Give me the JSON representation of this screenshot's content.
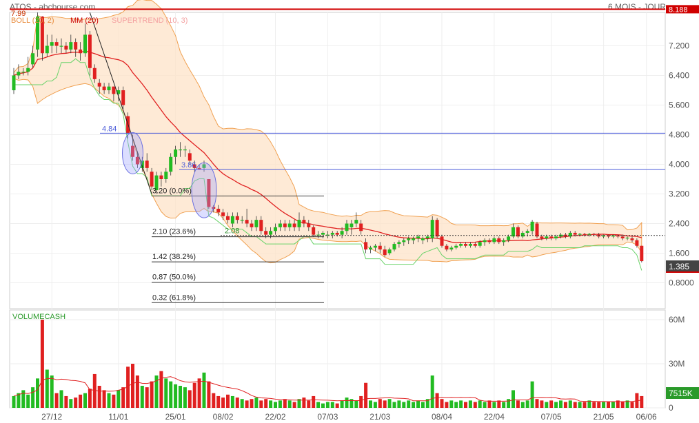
{
  "header": {
    "title": "ATOS - abcbourse.com",
    "period": "6 MOIS - JOUR"
  },
  "chart_data": {
    "type": "candlestick",
    "indicators": {
      "boll": "BOLL (20, 2)",
      "mm": "MM (20)",
      "supertrend": "SUPERTREND (10, 3)"
    },
    "price_labels": {
      "high": "7.99",
      "current": "1.385",
      "top_level": "8.188"
    },
    "y_ticks": [
      "7.200",
      "6.400",
      "5.600",
      "4.800",
      "4.000",
      "3.200",
      "2.400",
      "1.600",
      "0.8000"
    ],
    "x_ticks": [
      "27/12",
      "11/01",
      "25/01",
      "08/02",
      "22/02",
      "07/03",
      "21/03",
      "08/04",
      "22/04",
      "07/05",
      "21/05",
      "06/06"
    ],
    "levels": [
      {
        "value": 8.188
      },
      {
        "value": 4.84,
        "label": "4.84"
      },
      {
        "value": 3.86,
        "label": "3.86"
      },
      {
        "value": 2.08,
        "label": "2.08"
      }
    ],
    "fibonacci": [
      {
        "value": 3.2,
        "label": "3.20  (0.0%)"
      },
      {
        "value": 2.1,
        "label": "2.10  (23.6%)"
      },
      {
        "value": 1.42,
        "label": "1.42  (38.2%)"
      },
      {
        "value": 0.87,
        "label": "0.87  (50.0%)"
      },
      {
        "value": 0.32,
        "label": "0.32  (61.8%)"
      }
    ],
    "candles": [
      [
        6.0,
        6.6,
        5.9,
        6.4
      ],
      [
        6.4,
        6.7,
        6.3,
        6.5
      ],
      [
        6.5,
        6.6,
        6.4,
        6.5
      ],
      [
        6.5,
        6.9,
        6.4,
        6.6
      ],
      [
        6.7,
        7.2,
        6.6,
        7.0
      ],
      [
        7.1,
        8.1,
        6.9,
        7.99
      ],
      [
        7.99,
        8.0,
        6.8,
        7.0
      ],
      [
        7.0,
        7.5,
        6.9,
        7.2
      ],
      [
        7.2,
        7.5,
        7.0,
        7.3
      ],
      [
        7.3,
        7.4,
        7.0,
        7.2
      ],
      [
        7.2,
        7.4,
        7.0,
        7.2
      ],
      [
        7.2,
        7.3,
        7.0,
        7.1
      ],
      [
        7.1,
        7.5,
        7.0,
        7.3
      ],
      [
        7.3,
        7.4,
        6.9,
        7.1
      ],
      [
        7.1,
        7.3,
        6.8,
        7.0
      ],
      [
        7.0,
        7.8,
        6.9,
        7.5
      ],
      [
        7.5,
        7.6,
        6.4,
        6.6
      ],
      [
        6.6,
        6.7,
        6.2,
        6.3
      ],
      [
        6.2,
        6.3,
        5.9,
        6.1
      ],
      [
        6.1,
        6.2,
        5.9,
        6.0
      ],
      [
        6.0,
        6.2,
        5.9,
        6.1
      ],
      [
        6.1,
        6.1,
        5.7,
        5.9
      ],
      [
        5.9,
        6.1,
        5.7,
        6.0
      ],
      [
        6.0,
        6.1,
        5.5,
        5.6
      ],
      [
        5.3,
        5.4,
        4.7,
        4.84
      ],
      [
        4.5,
        4.8,
        4.1,
        4.2
      ],
      [
        4.2,
        4.3,
        3.9,
        4.0
      ],
      [
        3.9,
        4.2,
        3.8,
        4.1
      ],
      [
        4.1,
        4.3,
        3.8,
        3.9
      ],
      [
        3.8,
        3.9,
        3.3,
        3.4
      ],
      [
        3.3,
        3.8,
        3.2,
        3.7
      ],
      [
        3.7,
        3.8,
        3.4,
        3.6
      ],
      [
        3.6,
        3.9,
        3.5,
        3.8
      ],
      [
        3.8,
        4.3,
        3.7,
        4.2
      ],
      [
        4.2,
        4.5,
        4.0,
        4.4
      ],
      [
        4.4,
        4.6,
        4.2,
        4.4
      ],
      [
        4.4,
        4.5,
        4.2,
        4.4
      ],
      [
        4.3,
        4.4,
        4.0,
        4.1
      ],
      [
        4.0,
        4.1,
        3.8,
        3.9
      ],
      [
        3.9,
        4.0,
        3.85,
        3.86
      ],
      [
        3.9,
        4.1,
        3.8,
        4.0
      ],
      [
        3.6,
        3.6,
        2.8,
        2.85
      ],
      [
        2.85,
        2.9,
        2.7,
        2.8
      ],
      [
        2.8,
        2.9,
        2.6,
        2.7
      ],
      [
        2.7,
        2.8,
        2.5,
        2.6
      ],
      [
        2.6,
        2.7,
        2.4,
        2.5
      ],
      [
        2.4,
        2.7,
        2.3,
        2.6
      ],
      [
        2.6,
        2.7,
        2.4,
        2.5
      ],
      [
        2.5,
        2.6,
        2.4,
        2.5
      ],
      [
        2.5,
        2.8,
        2.3,
        2.4
      ],
      [
        2.4,
        2.5,
        2.2,
        2.3
      ],
      [
        2.3,
        2.6,
        2.2,
        2.5
      ],
      [
        2.5,
        2.6,
        2.1,
        2.2
      ],
      [
        2.2,
        2.3,
        2.0,
        2.1
      ],
      [
        2.1,
        2.3,
        2.0,
        2.2
      ],
      [
        2.2,
        2.4,
        2.1,
        2.3
      ],
      [
        2.3,
        2.5,
        2.2,
        2.4
      ],
      [
        2.4,
        2.5,
        2.2,
        2.3
      ],
      [
        2.3,
        2.5,
        2.2,
        2.4
      ],
      [
        2.4,
        2.5,
        2.2,
        2.3
      ],
      [
        2.3,
        2.7,
        2.2,
        2.5
      ],
      [
        2.5,
        2.6,
        2.3,
        2.4
      ],
      [
        2.4,
        2.5,
        2.2,
        2.3
      ],
      [
        2.3,
        2.35,
        2.05,
        2.1
      ],
      [
        2.1,
        2.2,
        2.0,
        2.1
      ],
      [
        2.1,
        2.2,
        2.0,
        2.15
      ],
      [
        2.1,
        2.2,
        2.0,
        2.1
      ],
      [
        2.1,
        2.2,
        2.0,
        2.15
      ],
      [
        2.15,
        2.2,
        2.05,
        2.1
      ],
      [
        2.1,
        2.3,
        2.0,
        2.2
      ],
      [
        2.2,
        2.5,
        2.1,
        2.4
      ],
      [
        2.3,
        2.5,
        2.1,
        2.4
      ],
      [
        2.4,
        2.7,
        2.3,
        2.5
      ],
      [
        2.4,
        2.5,
        2.1,
        2.2
      ],
      [
        1.9,
        2.0,
        1.6,
        1.7
      ],
      [
        1.7,
        1.8,
        1.6,
        1.75
      ],
      [
        1.75,
        1.85,
        1.65,
        1.8
      ],
      [
        1.8,
        1.9,
        1.6,
        1.7
      ],
      [
        1.7,
        1.8,
        1.5,
        1.55
      ],
      [
        1.6,
        1.75,
        1.55,
        1.7
      ],
      [
        1.7,
        1.9,
        1.65,
        1.85
      ],
      [
        1.85,
        1.95,
        1.75,
        1.9
      ],
      [
        1.9,
        2.0,
        1.8,
        1.95
      ],
      [
        1.95,
        2.05,
        1.85,
        2.0
      ],
      [
        1.95,
        2.05,
        1.85,
        2.0
      ],
      [
        2.0,
        2.1,
        1.9,
        2.05
      ],
      [
        1.95,
        2.05,
        1.85,
        2.0
      ],
      [
        2.0,
        2.1,
        1.9,
        2.05
      ],
      [
        2.0,
        2.6,
        1.9,
        2.5
      ],
      [
        2.5,
        2.55,
        2.0,
        2.05
      ],
      [
        2.05,
        2.1,
        1.75,
        1.8
      ],
      [
        1.8,
        1.85,
        1.65,
        1.7
      ],
      [
        1.7,
        1.8,
        1.65,
        1.75
      ],
      [
        1.75,
        1.85,
        1.7,
        1.8
      ],
      [
        1.8,
        1.9,
        1.75,
        1.85
      ],
      [
        1.85,
        1.9,
        1.75,
        1.8
      ],
      [
        1.8,
        1.9,
        1.75,
        1.85
      ],
      [
        1.85,
        1.9,
        1.75,
        1.8
      ],
      [
        1.8,
        1.95,
        1.75,
        1.9
      ],
      [
        1.9,
        2.0,
        1.8,
        1.95
      ],
      [
        1.95,
        2.0,
        1.85,
        1.9
      ],
      [
        1.9,
        2.05,
        1.85,
        2.0
      ],
      [
        2.0,
        2.05,
        1.85,
        1.9
      ],
      [
        1.9,
        2.0,
        1.8,
        1.95
      ],
      [
        1.95,
        2.1,
        1.9,
        2.05
      ],
      [
        2.05,
        2.4,
        2.0,
        2.3
      ],
      [
        2.3,
        2.35,
        2.0,
        2.05
      ],
      [
        2.05,
        2.2,
        2.0,
        2.15
      ],
      [
        2.15,
        2.25,
        2.05,
        2.2
      ],
      [
        2.2,
        2.5,
        2.1,
        2.45
      ],
      [
        2.4,
        2.45,
        2.0,
        2.05
      ],
      [
        2.05,
        2.1,
        1.95,
        2.0
      ],
      [
        2.0,
        2.1,
        1.95,
        2.05
      ],
      [
        2.05,
        2.1,
        1.95,
        2.0
      ],
      [
        2.0,
        2.1,
        1.95,
        2.05
      ],
      [
        2.05,
        2.15,
        2.0,
        2.1
      ],
      [
        2.1,
        2.15,
        2.0,
        2.05
      ],
      [
        2.05,
        2.2,
        2.0,
        2.15
      ],
      [
        2.15,
        2.2,
        2.05,
        2.1
      ],
      [
        2.1,
        2.15,
        2.05,
        2.12
      ],
      [
        2.12,
        2.15,
        2.05,
        2.1
      ],
      [
        2.1,
        2.15,
        2.05,
        2.12
      ],
      [
        2.12,
        2.15,
        2.05,
        2.1
      ],
      [
        2.1,
        2.15,
        2.0,
        2.05
      ],
      [
        2.05,
        2.1,
        2.0,
        2.08
      ],
      [
        2.08,
        2.1,
        2.0,
        2.05
      ],
      [
        2.05,
        2.1,
        2.0,
        2.08
      ],
      [
        2.08,
        2.1,
        2.0,
        2.05
      ],
      [
        2.05,
        2.1,
        1.95,
        2.0
      ],
      [
        2.0,
        2.05,
        1.95,
        2.02
      ],
      [
        2.0,
        2.05,
        1.9,
        1.95
      ],
      [
        1.95,
        2.0,
        1.75,
        1.8
      ],
      [
        1.8,
        1.8,
        1.35,
        1.385
      ]
    ],
    "volume": {
      "label": "VOLUMECASH",
      "y_ticks": [
        "60M",
        "30M",
        "0"
      ],
      "current_label": "7515K",
      "values": [
        8,
        10,
        12,
        9,
        14,
        20,
        60,
        26,
        22,
        10,
        12,
        8,
        6,
        7,
        9,
        10,
        13,
        23,
        15,
        12,
        10,
        9,
        12,
        14,
        28,
        30,
        22,
        15,
        14,
        18,
        22,
        25,
        20,
        18,
        16,
        15,
        14,
        12,
        17,
        20,
        24,
        18,
        10,
        8,
        7,
        9,
        8,
        7,
        6,
        5,
        6,
        7,
        5,
        6,
        5,
        4,
        5,
        6,
        5,
        4,
        6,
        7,
        5,
        8,
        4,
        3,
        4,
        4,
        3,
        5,
        7,
        6,
        5,
        8,
        17,
        5,
        4,
        6,
        5,
        6,
        4,
        5,
        4,
        5,
        4,
        5,
        4,
        6,
        22,
        10,
        6,
        4,
        5,
        4,
        5,
        4,
        5,
        4,
        5,
        4,
        5,
        4,
        5,
        4,
        6,
        12,
        5,
        4,
        5,
        18,
        6,
        5,
        4,
        5,
        4,
        5,
        4,
        5,
        4,
        4,
        4,
        5,
        4,
        4,
        4,
        4,
        4,
        5,
        4,
        5,
        4,
        10,
        8
      ]
    }
  },
  "colors": {
    "up": "#22bb22",
    "down": "#e02020",
    "band_fill": "#fde3c8",
    "band_stroke": "#f0a050",
    "mm": "#e02020",
    "supertrend": "#6ad36a",
    "level_line": "#4a5ad8",
    "top_line": "#d00000"
  }
}
